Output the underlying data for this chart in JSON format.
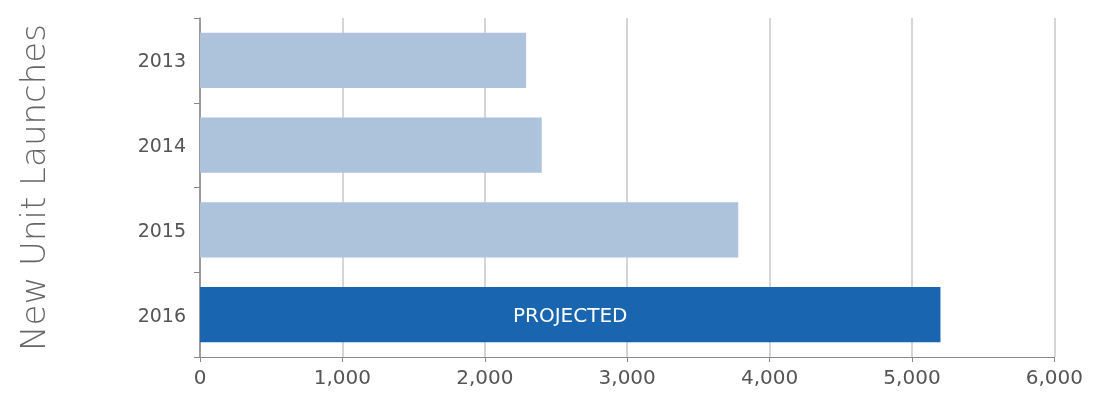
{
  "chart_data": {
    "type": "bar",
    "orientation": "horizontal",
    "ylabel": "New Unit Launches",
    "categories": [
      "2013",
      "2014",
      "2015",
      "2016"
    ],
    "values": [
      2290,
      2400,
      3780,
      5200
    ],
    "colors": [
      "#adc2db",
      "#adc2db",
      "#adc2db",
      "#1a65b0"
    ],
    "xlim": [
      0,
      6000
    ],
    "xticks": [
      0,
      {
        "value": 1000,
        "label": "1,000"
      },
      {
        "value": 2000,
        "label": "2,000"
      },
      {
        "value": 3000,
        "label": "3,000"
      },
      {
        "value": 4000,
        "label": "4,000"
      },
      {
        "value": 5000,
        "label": "5,000"
      },
      {
        "value": 6000,
        "label": "6,000"
      }
    ],
    "grid": "x",
    "annotations": [
      "PROJECTED"
    ]
  }
}
